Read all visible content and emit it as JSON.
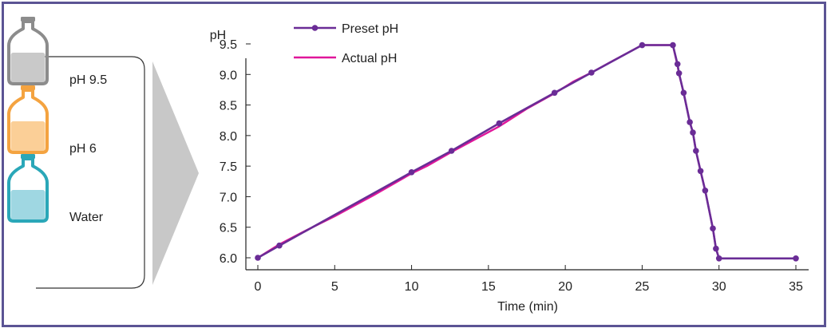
{
  "reagents": [
    {
      "label": "pH 9.5",
      "icon": "bottle-icon",
      "color": "#8c8c8c",
      "fill": "#c9c9c9"
    },
    {
      "label": "pH 6",
      "icon": "bottle-icon",
      "color": "#f4a340",
      "fill": "#fbcf97"
    },
    {
      "label": "Water",
      "icon": "bottle-icon",
      "color": "#2aa7b8",
      "fill": "#9fd7e2"
    }
  ],
  "arrow_icon": "triangle-right-icon",
  "chart_data": {
    "type": "line",
    "title": "",
    "xlabel": "Time (min)",
    "ylabel": "pH",
    "xlim": [
      0,
      35
    ],
    "ylim": [
      6.0,
      9.5
    ],
    "xticks": [
      0,
      5,
      10,
      15,
      20,
      25,
      30,
      35
    ],
    "yticks": [
      6.0,
      6.5,
      7.0,
      7.5,
      8.0,
      8.5,
      9.0,
      9.5
    ],
    "xtick_labels": [
      "0",
      "5",
      "10",
      "15",
      "20",
      "25",
      "30",
      "35"
    ],
    "ytick_labels": [
      "6.0",
      "6.5",
      "7.0",
      "7.5",
      "8.0",
      "8.5",
      "9.0",
      "9.5"
    ],
    "grid": false,
    "legend_position": "top-left",
    "series": [
      {
        "name": "Preset pH",
        "color": "#6a2c96",
        "markers": true,
        "x": [
          0,
          1.4,
          10,
          12.6,
          15.7,
          19.3,
          21.7,
          25,
          27,
          27.3,
          27.4,
          27.7,
          28.1,
          28.3,
          28.5,
          28.8,
          29.1,
          29.6,
          29.8,
          30,
          35
        ],
        "y": [
          6.0,
          6.2,
          7.4,
          7.75,
          8.2,
          8.7,
          9.03,
          9.48,
          9.48,
          9.17,
          9.02,
          8.7,
          8.22,
          8.05,
          7.75,
          7.42,
          7.1,
          6.48,
          6.15,
          5.99,
          5.99
        ]
      },
      {
        "name": "Actual pH",
        "color": "#e0169a",
        "markers": false,
        "x": [
          0,
          1.4,
          3,
          5,
          7.5,
          10,
          11,
          12.6,
          14,
          15.7,
          17.5,
          19.3,
          20.5,
          21.7,
          23,
          25,
          27,
          27.3,
          27.4,
          27.7,
          28.1,
          28.3,
          28.5,
          28.8,
          29.1,
          29.6,
          29.8,
          30,
          35
        ],
        "y": [
          6.0,
          6.22,
          6.43,
          6.68,
          7.02,
          7.38,
          7.5,
          7.73,
          7.92,
          8.15,
          8.44,
          8.69,
          8.88,
          9.03,
          9.21,
          9.48,
          9.48,
          9.15,
          9.01,
          8.7,
          8.22,
          8.05,
          7.75,
          7.42,
          7.1,
          6.48,
          6.15,
          5.99,
          5.99
        ]
      }
    ]
  }
}
